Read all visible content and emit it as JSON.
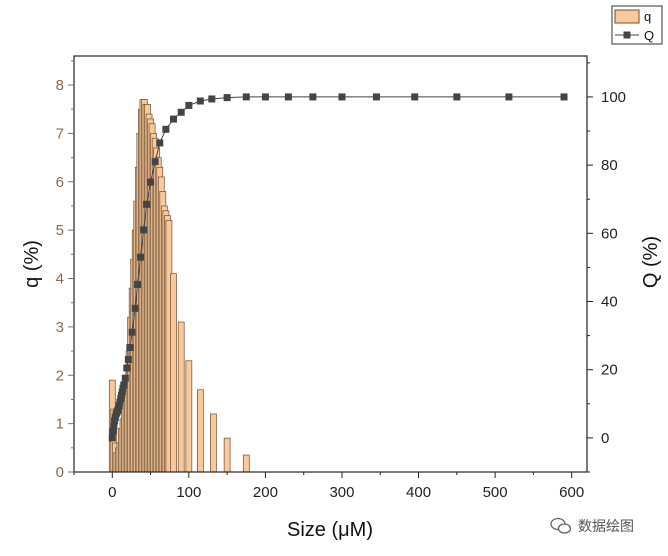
{
  "chart_data": {
    "type": "bar+line",
    "title": "",
    "xlabel": "Size (μM)",
    "ylabel_left": "q (%)",
    "ylabel_right": "Q (%)",
    "xlim": [
      -50,
      620
    ],
    "ylim_left": [
      0,
      8.6
    ],
    "ylim_right": [
      -10,
      112
    ],
    "x_ticks": [
      0,
      100,
      200,
      300,
      400,
      500,
      600
    ],
    "y_left_ticks": [
      0,
      1,
      2,
      3,
      4,
      5,
      6,
      7,
      8
    ],
    "y_right_ticks": [
      0,
      20,
      40,
      60,
      80,
      100
    ],
    "legend": {
      "position": "top-right",
      "entries": [
        "q",
        "Q"
      ]
    },
    "colors": {
      "bar_fill": "#f9c99b",
      "bar_edge": "#6b4e35",
      "line": "#444444",
      "left_axis": "#8a6a52"
    },
    "series": [
      {
        "name": "q",
        "kind": "bar",
        "x": [
          0,
          2,
          4,
          6,
          8,
          10,
          12,
          14,
          16,
          18,
          20,
          22,
          24,
          26,
          28,
          30,
          32,
          34,
          36,
          38,
          40,
          42,
          44,
          46,
          48,
          50,
          52,
          54,
          56,
          58,
          60,
          62,
          64,
          66,
          68,
          70,
          72,
          74,
          80,
          90,
          100,
          115,
          132,
          150,
          175,
          200
        ],
        "values": [
          1.9,
          1.3,
          0.6,
          0.4,
          0.5,
          0.6,
          0.9,
          1.1,
          1.4,
          1.7,
          2.0,
          2.5,
          3.2,
          3.8,
          4.4,
          5.0,
          5.6,
          6.3,
          7.0,
          7.5,
          7.7,
          7.7,
          7.6,
          7.6,
          7.4,
          7.3,
          7.2,
          7.0,
          6.9,
          6.7,
          6.5,
          6.3,
          6.1,
          5.8,
          5.5,
          5.4,
          5.3,
          5.2,
          4.1,
          3.1,
          2.3,
          1.7,
          1.2,
          0.7,
          0.35,
          0.0
        ]
      },
      {
        "name": "Q",
        "kind": "line",
        "x": [
          0,
          1,
          2,
          3,
          4,
          5,
          6,
          7,
          8,
          9,
          10,
          11,
          12,
          13,
          14,
          15,
          17,
          19,
          21,
          23,
          26,
          30,
          33,
          37,
          41,
          45,
          50,
          56,
          62,
          70,
          80,
          90,
          100,
          115,
          130,
          150,
          175,
          200,
          230,
          262,
          300,
          345,
          395,
          450,
          518,
          590
        ],
        "values": [
          0,
          2,
          3.5,
          5,
          6,
          7,
          7.5,
          8,
          8.5,
          9.5,
          10.5,
          11.5,
          12.5,
          13.5,
          14.5,
          15.5,
          17.5,
          20.5,
          23,
          26.5,
          31,
          38,
          45,
          53,
          61,
          68.5,
          75,
          81,
          86.5,
          90.5,
          93.5,
          95.5,
          97.5,
          98.8,
          99.4,
          99.8,
          100,
          100,
          100,
          100,
          100,
          100,
          100,
          100,
          100,
          100
        ]
      }
    ]
  },
  "watermark": {
    "text": "数据绘图"
  }
}
